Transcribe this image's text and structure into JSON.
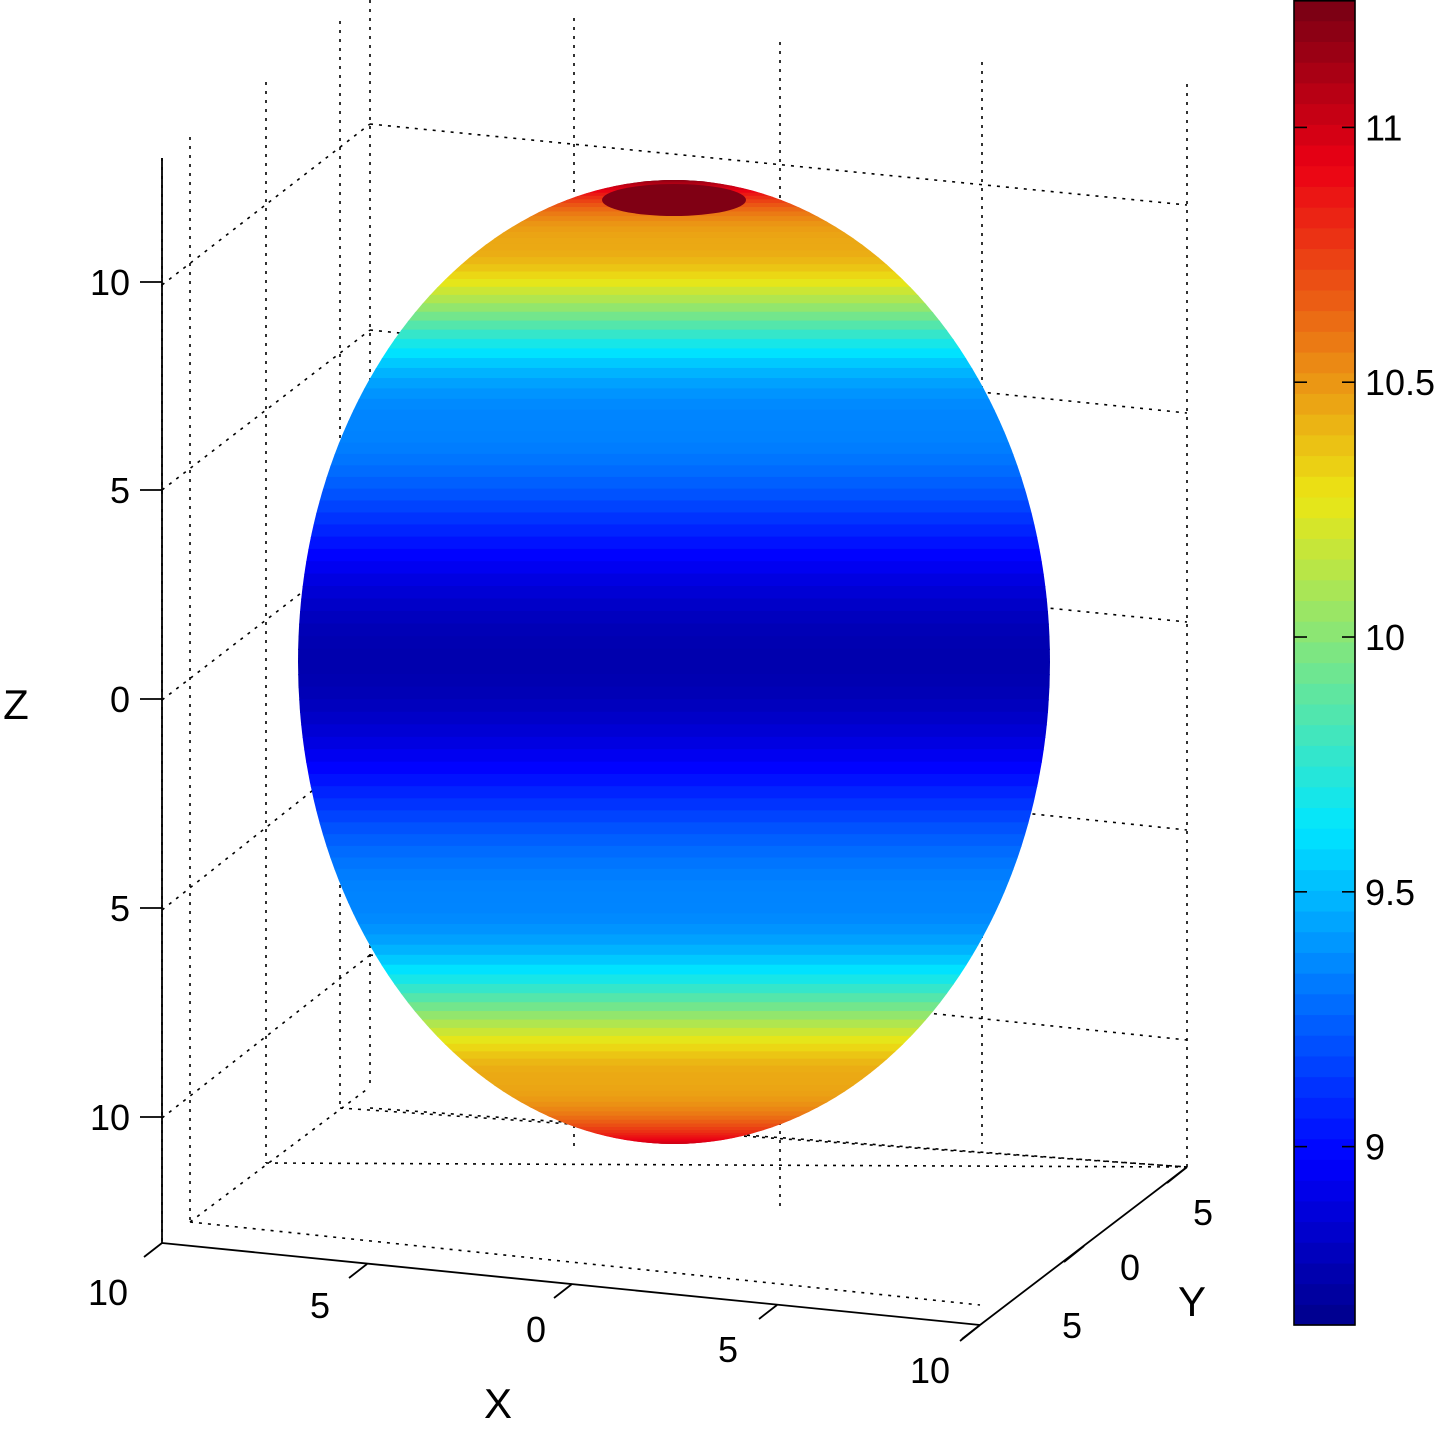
{
  "chart_data": {
    "type": "surface",
    "surface": "ellipsoid",
    "xlabel": "X",
    "ylabel": "Y",
    "zlabel": "Z",
    "xlim": [
      -10,
      10
    ],
    "ylim": [
      -5,
      5
    ],
    "zlim": [
      -12,
      12
    ],
    "semi_axis_x": 9,
    "semi_axis_y": 9,
    "semi_axis_z": 11.5,
    "x_ticks": [
      -10,
      -5,
      0,
      5,
      10
    ],
    "x_tick_labels": [
      "10",
      "5",
      "0",
      "5",
      "10"
    ],
    "y_ticks": [
      -5,
      0,
      5
    ],
    "y_tick_labels": [
      "5",
      "0",
      "5"
    ],
    "z_ticks": [
      10,
      5,
      0,
      -5,
      -10
    ],
    "z_tick_labels": [
      "10",
      "5",
      "0",
      "5",
      "10"
    ],
    "grid": true,
    "colormap": "jet",
    "color_variable": "radius",
    "colorbar": {
      "range": [
        8.65,
        11.25
      ],
      "ticks": [
        9,
        9.5,
        10,
        10.5,
        11
      ],
      "tick_labels": [
        "9",
        "9.5",
        "10",
        "10.5",
        "11"
      ],
      "position": "right"
    },
    "color_by_latitude": [
      {
        "latitude_deg": -90,
        "value": 11.0
      },
      {
        "latitude_deg": -60,
        "value": 10.45
      },
      {
        "latitude_deg": -30,
        "value": 9.35
      },
      {
        "latitude_deg": 0,
        "value": 8.75
      },
      {
        "latitude_deg": 30,
        "value": 9.35
      },
      {
        "latitude_deg": 60,
        "value": 10.45
      },
      {
        "latitude_deg": 90,
        "value": 11.2
      }
    ]
  }
}
